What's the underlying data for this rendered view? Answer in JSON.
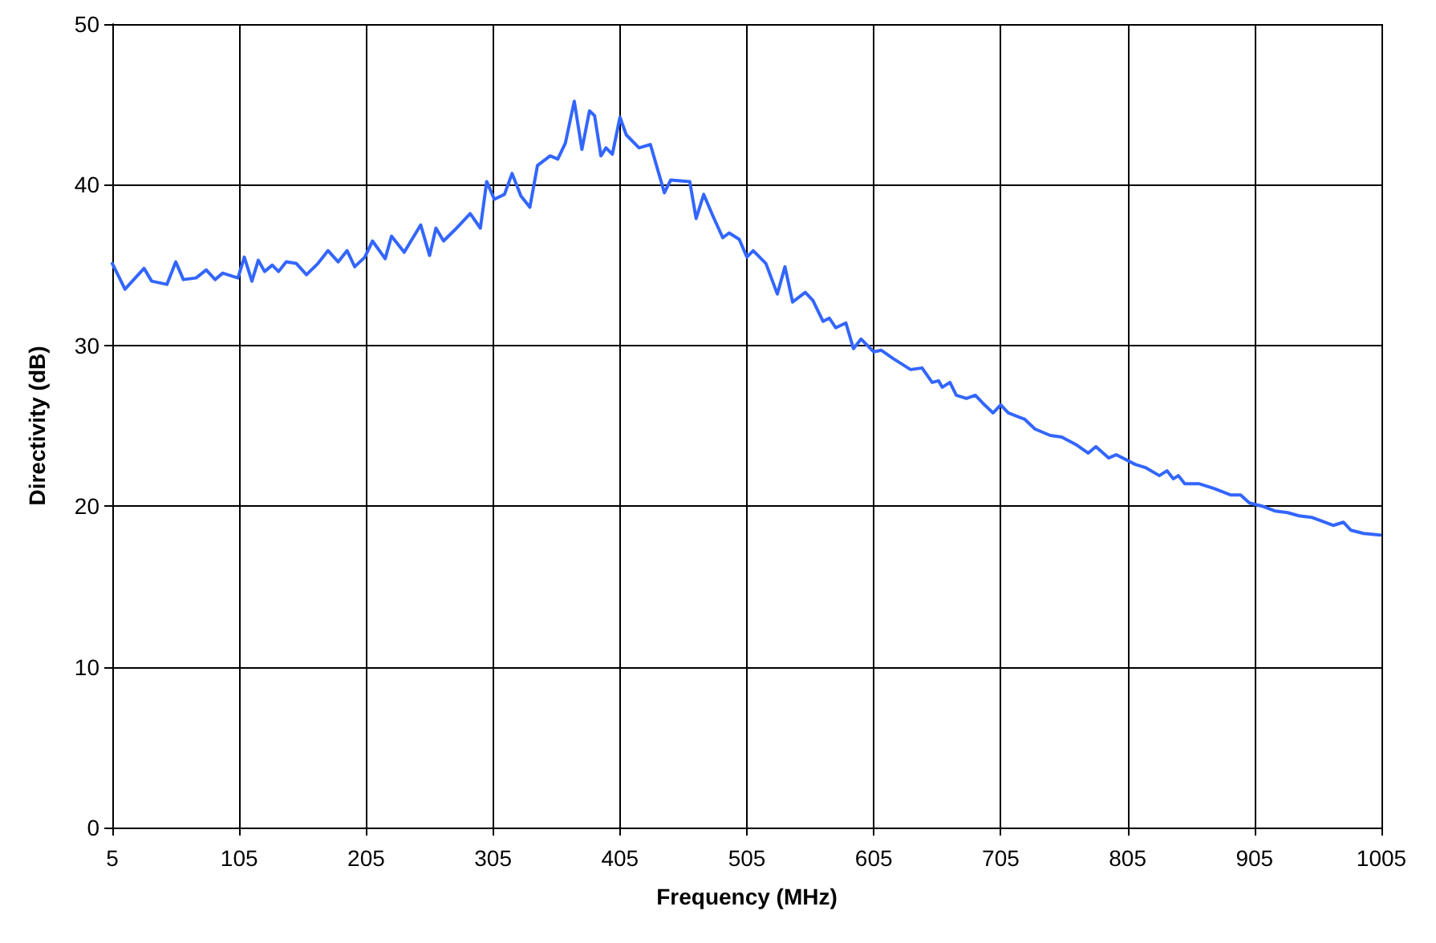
{
  "chart_data": {
    "type": "line",
    "xlabel": "Frequency (MHz)",
    "ylabel": "Directivity (dB)",
    "xlim": [
      5,
      1005
    ],
    "xticks": [
      5,
      105,
      205,
      305,
      405,
      505,
      605,
      705,
      805,
      905,
      1005
    ],
    "ylim": [
      0,
      50
    ],
    "yticks": [
      0,
      10,
      20,
      30,
      40,
      50
    ],
    "grid": true,
    "marker": "none",
    "line_style": "solid",
    "series": [
      {
        "color": "#3366ff",
        "x": [
          5,
          15,
          30,
          36,
          48,
          55,
          61,
          71,
          79,
          86,
          92,
          104,
          109,
          115,
          120,
          125,
          131,
          136,
          142,
          150,
          158,
          167,
          175,
          183,
          190,
          196,
          204,
          210,
          220,
          225,
          235,
          248,
          255,
          260,
          266,
          275,
          287,
          295,
          300,
          306,
          314,
          320,
          327,
          334,
          340,
          350,
          356,
          362,
          369,
          375,
          381,
          385,
          390,
          394,
          399,
          405,
          410,
          420,
          429,
          440,
          445,
          460,
          465,
          471,
          478,
          486,
          491,
          499,
          505,
          510,
          520,
          529,
          535,
          541,
          551,
          557,
          565,
          570,
          575,
          583,
          589,
          595,
          605,
          611,
          620,
          634,
          643,
          651,
          656,
          659,
          665,
          670,
          678,
          685,
          691,
          699,
          705,
          711,
          724,
          732,
          744,
          753,
          765,
          774,
          780,
          790,
          796,
          811,
          819,
          830,
          836,
          841,
          845,
          850,
          861,
          873,
          886,
          894,
          901,
          911,
          921,
          931,
          940,
          950,
          967,
          975,
          981,
          991,
          1004
        ],
        "values": [
          35.1,
          33.5,
          34.8,
          34.0,
          33.8,
          35.2,
          34.1,
          34.2,
          34.7,
          34.1,
          34.5,
          34.2,
          35.5,
          34.0,
          35.3,
          34.6,
          35.0,
          34.6,
          35.2,
          35.1,
          34.4,
          35.1,
          35.9,
          35.2,
          35.9,
          34.9,
          35.5,
          36.5,
          35.4,
          36.8,
          35.8,
          37.5,
          35.6,
          37.3,
          36.5,
          37.2,
          38.2,
          37.3,
          40.2,
          39.1,
          39.4,
          40.7,
          39.3,
          38.6,
          41.2,
          41.8,
          41.6,
          42.6,
          45.2,
          42.2,
          44.6,
          44.3,
          41.8,
          42.3,
          41.9,
          44.2,
          43.1,
          42.3,
          42.5,
          39.5,
          40.3,
          40.2,
          37.9,
          39.4,
          38.1,
          36.7,
          37.0,
          36.6,
          35.5,
          35.9,
          35.1,
          33.2,
          34.9,
          32.7,
          33.3,
          32.8,
          31.5,
          31.7,
          31.1,
          31.4,
          29.8,
          30.4,
          29.6,
          29.7,
          29.2,
          28.5,
          28.6,
          27.7,
          27.8,
          27.4,
          27.7,
          26.9,
          26.7,
          26.9,
          26.4,
          25.8,
          26.3,
          25.8,
          25.4,
          24.8,
          24.4,
          24.3,
          23.8,
          23.3,
          23.7,
          23.0,
          23.2,
          22.6,
          22.4,
          21.9,
          22.2,
          21.7,
          21.9,
          21.4,
          21.4,
          21.1,
          20.7,
          20.7,
          20.2,
          20.0,
          19.7,
          19.6,
          19.4,
          19.3,
          18.8,
          19.0,
          18.5,
          18.3,
          18.2
        ]
      }
    ]
  }
}
